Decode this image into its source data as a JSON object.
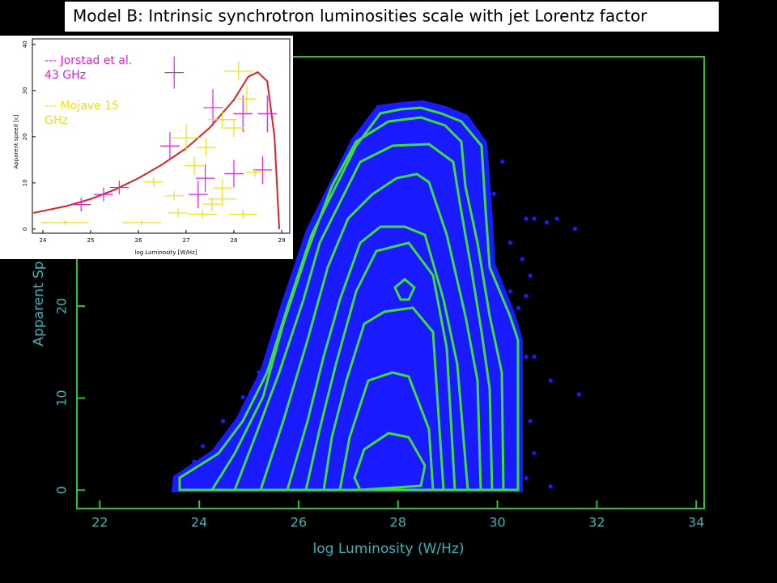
{
  "title": "Model B: Intrinsic synchrotron luminosities scale with jet Lorentz factor",
  "chart_data": [
    {
      "type": "scatter",
      "xlabel": "log Luminosity (W/Hz)",
      "ylabel": "Apparent Sp",
      "xlim": [
        21.54,
        34.16
      ],
      "ylim": [
        -2,
        47.1
      ],
      "xticks": [
        22,
        24,
        26,
        28,
        30,
        32,
        34
      ],
      "yticks": [
        0,
        10,
        20
      ],
      "series": [
        {
          "color": "#1a1aff",
          "x": [
            30.58,
            30.74,
            30.99,
            31.56,
            31.2,
            30.26,
            30.66,
            30.58,
            30.42,
            30.74,
            31.07,
            31.64,
            30.5,
            30.26,
            30.1,
            30.58,
            30.66,
            31.07,
            30.58,
            24.07,
            23.9,
            23.5,
            23.74,
            24.48,
            24.88,
            25.2,
            25.53,
            25.86,
            26.19,
            26.51,
            27.0,
            27.49,
            28.14,
            29.12,
            29.61,
            29.93,
            30.34,
            30.74
          ],
          "y": [
            29.5,
            29.5,
            29.1,
            28.4,
            29.5,
            26.9,
            23.3,
            21.1,
            19.8,
            14.5,
            11.9,
            10.4,
            25.1,
            21.6,
            35.7,
            14.5,
            7.5,
            0.4,
            1.3,
            4.8,
            3.1,
            0.4,
            0.9,
            7.5,
            10.1,
            12.8,
            16.3,
            21.6,
            24.2,
            27.8,
            34.8,
            39.2,
            40.5,
            40.1,
            38.3,
            32.2,
            16.3,
            4.0
          ]
        }
      ]
    },
    {
      "type": "errorbar",
      "xlabel": "log Luminosity [W/Hz]",
      "ylabel": "Apparent speed [c]",
      "xlim": [
        23.78,
        29.17
      ],
      "ylim": [
        -0.9,
        41.2
      ],
      "xticks": [
        24,
        25,
        26,
        27,
        28,
        29
      ],
      "yticks": [
        0,
        10,
        20,
        30,
        40
      ],
      "curve": {
        "color": "#e02020",
        "x": [
          23.8,
          24.5,
          25.0,
          25.5,
          26.0,
          26.5,
          27.0,
          27.5,
          28.0,
          28.3,
          28.5,
          28.7,
          28.85,
          28.95
        ],
        "y": [
          3.5,
          5.0,
          6.5,
          8.5,
          11.0,
          14.0,
          17.5,
          22.0,
          28.0,
          33.0,
          34.0,
          32.0,
          20.0,
          0.0
        ]
      },
      "series": [
        {
          "name": "--- Jorstad et al. 43 GHz",
          "color": "#e020e0",
          "x": [
            26.75,
            24.8,
            25.27,
            25.6,
            26.66,
            27.56,
            28.19,
            28.7,
            28.6,
            28.0,
            27.4,
            27.25
          ],
          "y": [
            33.9,
            5.3,
            7.5,
            9.0,
            18.0,
            26.3,
            25.0,
            25.0,
            12.8,
            12.0,
            11.0,
            7.5
          ],
          "xerr": [
            0.2,
            0.2,
            0.2,
            0.2,
            0.2,
            0.2,
            0.2,
            0.2,
            0.2,
            0.2,
            0.2,
            0.2
          ],
          "yerr": [
            3.5,
            1.5,
            1.5,
            1.5,
            3,
            4,
            4,
            4,
            3,
            3,
            3,
            3
          ]
        },
        {
          "name": "--- Mojave 15 GHz",
          "color": "#e8e020",
          "x": [
            28.1,
            28.27,
            27.76,
            28.0,
            27.0,
            27.42,
            27.17,
            28.44,
            27.76,
            27.76,
            27.54,
            26.75,
            26.83,
            27.34,
            28.19,
            24.46,
            26.07,
            26.32
          ],
          "y": [
            34.2,
            28.2,
            23.7,
            21.9,
            19.8,
            17.7,
            13.7,
            12.3,
            8.9,
            6.5,
            5.4,
            7.2,
            3.5,
            3.2,
            3.2,
            1.4,
            1.4,
            10.2
          ],
          "xerr": [
            0.3,
            0.2,
            0.3,
            0.2,
            0.3,
            0.2,
            0.2,
            0.2,
            0.2,
            0.3,
            0.2,
            0.2,
            0.2,
            0.3,
            0.3,
            0.5,
            0.4,
            0.2
          ],
          "yerr": [
            2,
            3,
            2,
            2,
            3,
            2,
            2,
            1,
            2,
            1.5,
            1.5,
            1,
            1,
            1,
            1,
            0.5,
            0.5,
            1
          ]
        }
      ]
    }
  ]
}
